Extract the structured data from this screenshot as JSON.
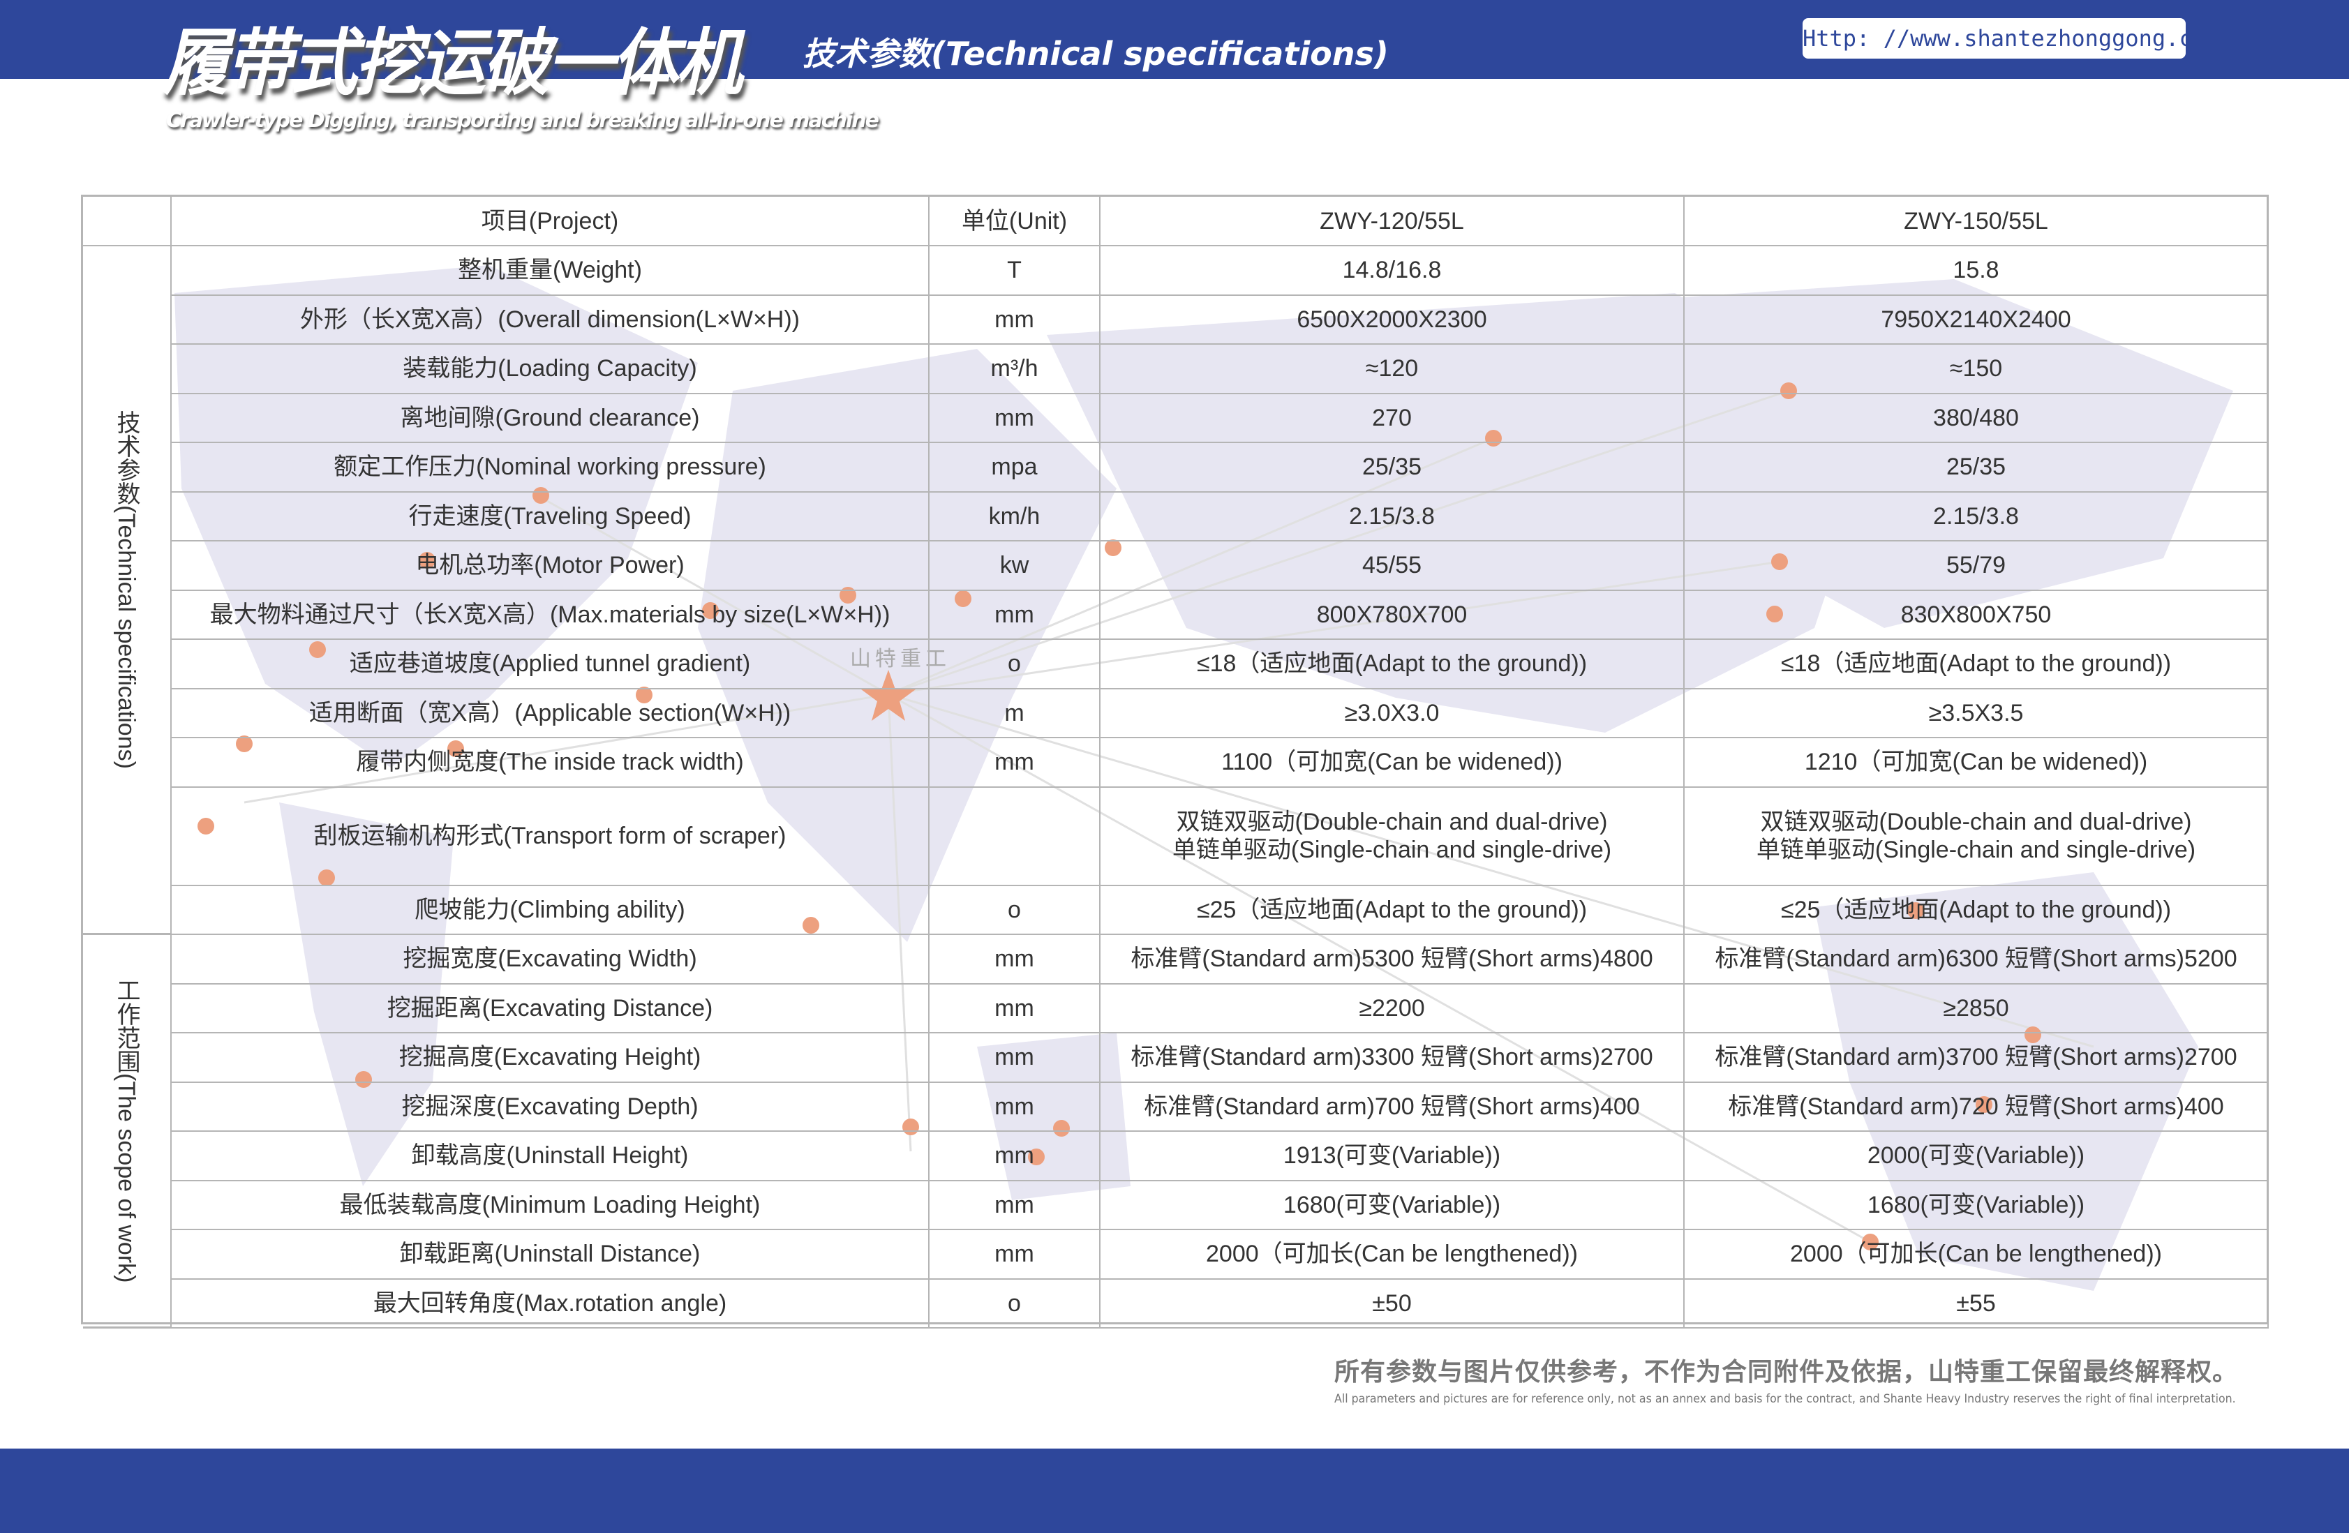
{
  "header": {
    "title": "履带式挖运破一体机",
    "subtitle_en": "Crawler-type Digging, transporting and breaking all-in-one machine",
    "section": "技术参数(Technical specifications)",
    "url": "Http: //www.shantezhonggong.com",
    "brand_color": "#2e479b"
  },
  "watermark": "山特重工",
  "table": {
    "headers": [
      "项目(Project)",
      "单位(Unit)",
      "ZWY-120/55L",
      "ZWY-150/55L"
    ],
    "groups": [
      {
        "label": "技术参数(Technical specifications)",
        "rows": [
          {
            "item": "整机重量(Weight)",
            "unit": "T",
            "a": "14.8/16.8",
            "b": "15.8"
          },
          {
            "item": "外形（长X宽X高）(Overall dimension(L×W×H))",
            "unit": "mm",
            "a": "6500X2000X2300",
            "b": "7950X2140X2400"
          },
          {
            "item": "装载能力(Loading Capacity)",
            "unit": "m³/h",
            "a": "≈120",
            "b": "≈150"
          },
          {
            "item": "离地间隙(Ground clearance)",
            "unit": "mm",
            "a": "270",
            "b": "380/480"
          },
          {
            "item": "额定工作压力(Nominal working pressure)",
            "unit": "mpa",
            "a": "25/35",
            "b": "25/35"
          },
          {
            "item": "行走速度(Traveling Speed)",
            "unit": "km/h",
            "a": "2.15/3.8",
            "b": "2.15/3.8"
          },
          {
            "item": "电机总功率(Motor Power)",
            "unit": "kw",
            "a": "45/55",
            "b": "55/79"
          },
          {
            "item": "最大物料通过尺寸（长X宽X高）(Max.materials by size(L×W×H))",
            "unit": "mm",
            "a": "800X780X700",
            "b": "830X800X750"
          },
          {
            "item": "适应巷道坡度(Applied tunnel gradient)",
            "unit": "o",
            "a": "≤18（适应地面(Adapt to the ground))",
            "b": "≤18（适应地面(Adapt to the ground))"
          },
          {
            "item": "适用断面（宽X高）(Applicable section(W×H))",
            "unit": "m",
            "a": "≥3.0X3.0",
            "b": "≥3.5X3.5"
          },
          {
            "item": "履带内侧宽度(The inside track width)",
            "unit": "mm",
            "a": "1100（可加宽(Can be widened))",
            "b": "1210（可加宽(Can be widened))"
          },
          {
            "item": "刮板运输机构形式(Transport form of scraper)",
            "unit": "",
            "a": "双链双驱动(Double-chain and dual-drive)\n单链单驱动(Single-chain and single-drive)",
            "b": "双链双驱动(Double-chain and dual-drive)\n单链单驱动(Single-chain and single-drive)",
            "tall": true
          },
          {
            "item": "爬坡能力(Climbing ability)",
            "unit": "o",
            "a": "≤25（适应地面(Adapt to the ground))",
            "b": "≤25（适应地面(Adapt to the ground))"
          }
        ]
      },
      {
        "label": "工作范围(The scope of work)",
        "rows": [
          {
            "item": "挖掘宽度(Excavating Width)",
            "unit": "mm",
            "a": "标准臂(Standard arm)5300 短臂(Short arms)4800",
            "b": "标准臂(Standard arm)6300 短臂(Short arms)5200"
          },
          {
            "item": "挖掘距离(Excavating Distance)",
            "unit": "mm",
            "a": "≥2200",
            "b": "≥2850"
          },
          {
            "item": "挖掘高度(Excavating Height)",
            "unit": "mm",
            "a": "标准臂(Standard arm)3300 短臂(Short arms)2700",
            "b": "标准臂(Standard arm)3700 短臂(Short arms)2700"
          },
          {
            "item": "挖掘深度(Excavating Depth)",
            "unit": "mm",
            "a": "标准臂(Standard arm)700 短臂(Short arms)400",
            "b": "标准臂(Standard arm)720 短臂(Short arms)400"
          },
          {
            "item": "卸载高度(Uninstall Height)",
            "unit": "mm",
            "a": "1913(可变(Variable))",
            "b": "2000(可变(Variable))"
          },
          {
            "item": "最低装载高度(Minimum Loading Height)",
            "unit": "mm",
            "a": "1680(可变(Variable))",
            "b": "1680(可变(Variable))"
          },
          {
            "item": "卸载距离(Uninstall Distance)",
            "unit": "mm",
            "a": "2000（可加长(Can be lengthened))",
            "b": "2000（可加长(Can be lengthened))"
          },
          {
            "item": "最大回转角度(Max.rotation angle)",
            "unit": "o",
            "a": "±50",
            "b": "±55"
          }
        ]
      }
    ]
  },
  "footer": {
    "note": "所有参数与图片仅供参考，不作为合同附件及依据，山特重工保留最终解释权。",
    "note_en": "All parameters and pictures are for reference only, not as an annex and basis for the contract, and Shante Heavy Industry reserves the right of final interpretation."
  }
}
